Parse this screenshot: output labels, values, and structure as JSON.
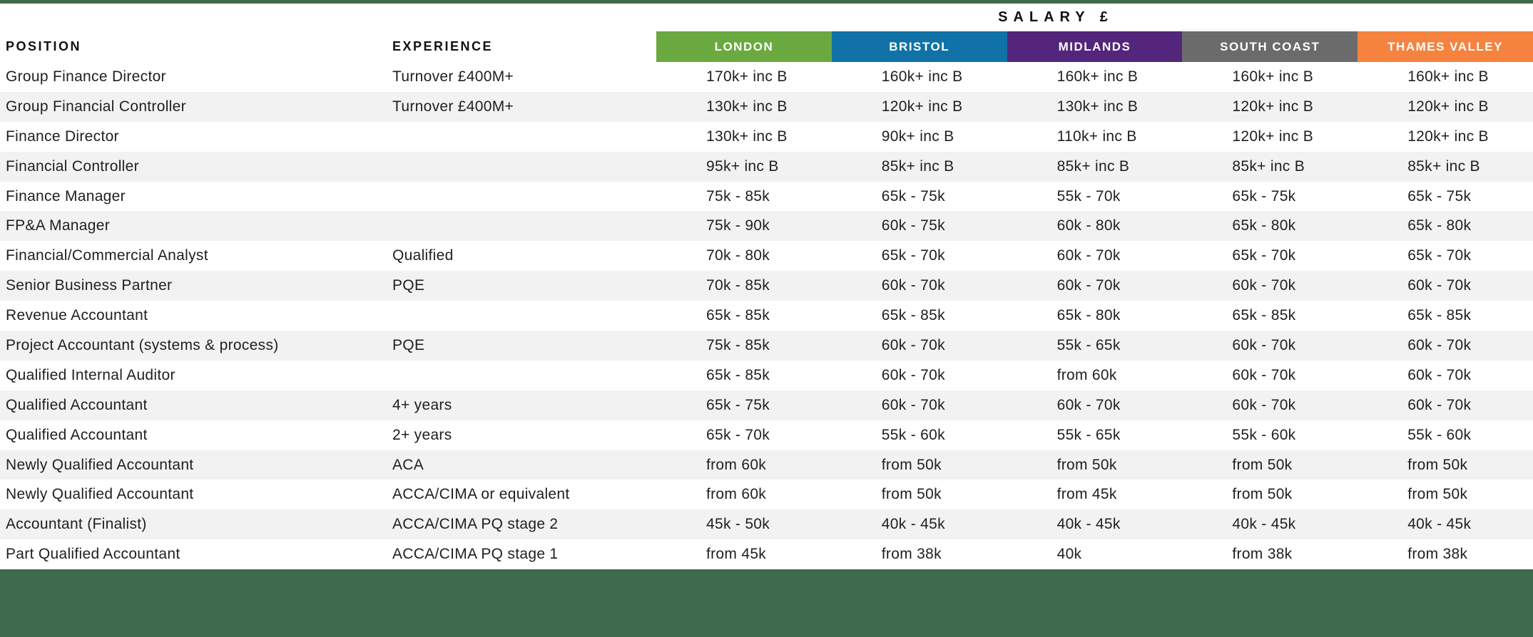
{
  "header": {
    "salary_label": "SALARY £",
    "position_label": "POSITION",
    "experience_label": "EXPERIENCE",
    "regions": [
      {
        "label": "LONDON",
        "color": "#6aa93f"
      },
      {
        "label": "BRISTOL",
        "color": "#1172a7"
      },
      {
        "label": "MIDLANDS",
        "color": "#53257b"
      },
      {
        "label": "SOUTH COAST",
        "color": "#6b6b6b"
      },
      {
        "label": "THAMES VALLEY",
        "color": "#f5833f"
      }
    ]
  },
  "theme": {
    "top_rule_color": "#3e6b4c",
    "footer_color": "#3e6b4c",
    "row_alt_color": "#f2f2f2",
    "text_color": "#1f1f1f"
  },
  "rows": [
    {
      "position": "Group Finance Director",
      "experience": "Turnover £400M+",
      "salaries": [
        "170k+ inc B",
        "160k+ inc B",
        "160k+ inc B",
        "160k+ inc B",
        "160k+ inc B"
      ]
    },
    {
      "position": "Group Financial Controller",
      "experience": "Turnover £400M+",
      "salaries": [
        "130k+ inc B",
        "120k+ inc B",
        "130k+ inc B",
        "120k+ inc B",
        "120k+ inc B"
      ]
    },
    {
      "position": "Finance Director",
      "experience": "",
      "salaries": [
        "130k+ inc B",
        "90k+ inc B",
        "110k+ inc B",
        "120k+ inc B",
        "120k+ inc B"
      ]
    },
    {
      "position": "Financial Controller",
      "experience": "",
      "salaries": [
        "95k+ inc B",
        "85k+ inc B",
        "85k+ inc B",
        "85k+ inc B",
        "85k+ inc B"
      ]
    },
    {
      "position": "Finance Manager",
      "experience": "",
      "salaries": [
        "75k - 85k",
        "65k - 75k",
        "55k - 70k",
        "65k - 75k",
        "65k - 75k"
      ]
    },
    {
      "position": "FP&A Manager",
      "experience": "",
      "salaries": [
        "75k - 90k",
        "60k - 75k",
        "60k - 80k",
        "65k - 80k",
        "65k - 80k"
      ]
    },
    {
      "position": "Financial/Commercial Analyst",
      "experience": "Qualified",
      "salaries": [
        "70k - 80k",
        "65k - 70k",
        "60k - 70k",
        "65k - 70k",
        "65k - 70k"
      ]
    },
    {
      "position": "Senior Business Partner",
      "experience": "PQE",
      "salaries": [
        "70k - 85k",
        "60k - 70k",
        "60k - 70k",
        "60k - 70k",
        "60k - 70k"
      ]
    },
    {
      "position": "Revenue Accountant",
      "experience": "",
      "salaries": [
        "65k - 85k",
        "65k - 85k",
        "65k - 80k",
        "65k - 85k",
        "65k - 85k"
      ]
    },
    {
      "position": "Project Accountant (systems & process)",
      "experience": "PQE",
      "salaries": [
        "75k - 85k",
        "60k - 70k",
        "55k - 65k",
        "60k - 70k",
        "60k - 70k"
      ]
    },
    {
      "position": "Qualified Internal Auditor",
      "experience": "",
      "salaries": [
        "65k - 85k",
        "60k - 70k",
        "from 60k",
        "60k - 70k",
        "60k - 70k"
      ]
    },
    {
      "position": "Qualified Accountant",
      "experience": "4+ years",
      "salaries": [
        "65k - 75k",
        "60k - 70k",
        "60k - 70k",
        "60k - 70k",
        "60k - 70k"
      ]
    },
    {
      "position": "Qualified Accountant",
      "experience": "2+ years",
      "salaries": [
        "65k - 70k",
        "55k - 60k",
        "55k - 65k",
        "55k - 60k",
        "55k - 60k"
      ]
    },
    {
      "position": "Newly Qualified Accountant",
      "experience": "ACA",
      "salaries": [
        "from 60k",
        "from 50k",
        "from 50k",
        "from 50k",
        "from 50k"
      ]
    },
    {
      "position": "Newly Qualified Accountant",
      "experience": "ACCA/CIMA or equivalent",
      "salaries": [
        "from 60k",
        "from 50k",
        "from 45k",
        "from 50k",
        "from 50k"
      ]
    },
    {
      "position": "Accountant (Finalist)",
      "experience": "ACCA/CIMA PQ stage 2",
      "salaries": [
        "45k - 50k",
        "40k - 45k",
        "40k - 45k",
        "40k - 45k",
        "40k - 45k"
      ]
    },
    {
      "position": "Part Qualified Accountant",
      "experience": "ACCA/CIMA PQ stage 1",
      "salaries": [
        "from 45k",
        "from 38k",
        "40k",
        "from 38k",
        "from 38k"
      ]
    }
  ]
}
